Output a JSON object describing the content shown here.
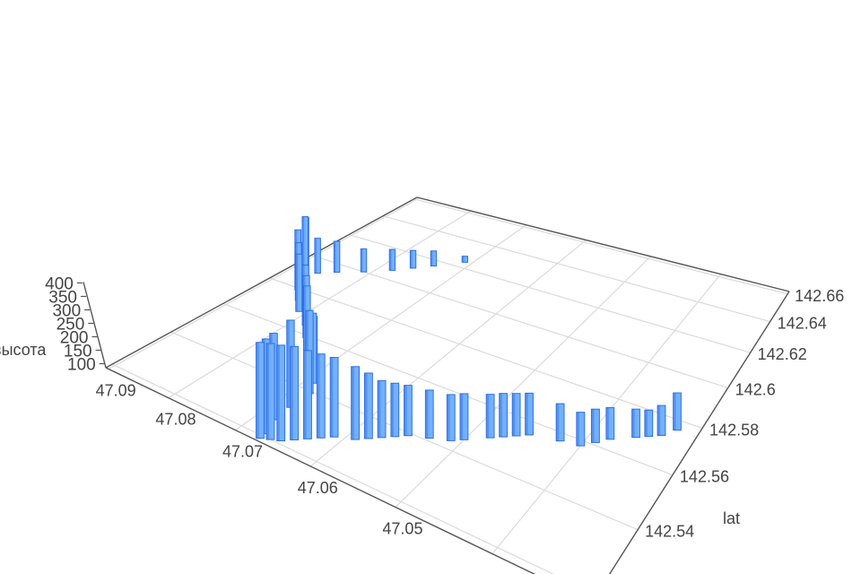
{
  "chart_data": {
    "type": "bar",
    "subtype": "3d-bars",
    "title": "",
    "xlabel": "",
    "ylabel": "lat",
    "zlabel": "высота",
    "x_range": [
      47.031,
      47.0905
    ],
    "y_range": [
      142.518,
      142.662
    ],
    "z_range": [
      85,
      410
    ],
    "x_ticks": [
      "47.09",
      "47.08",
      "47.07",
      "47.06",
      "47.05"
    ],
    "y_ticks": [
      "142.54",
      "142.56",
      "142.58",
      "142.6",
      "142.62",
      "142.64",
      "142.66"
    ],
    "z_ticks": [
      "100",
      "150",
      "200",
      "250",
      "300",
      "350",
      "400"
    ],
    "grid": true,
    "bar_color": "#74b1fb",
    "bar_edge_color": "#2f6fe4",
    "points": {
      "x": [
        47.071,
        47.074,
        47.076,
        47.078,
        47.081,
        47.084,
        47.086,
        47.087,
        47.086,
        47.085,
        47.083,
        47.081,
        47.078,
        47.076,
        47.074,
        47.072,
        47.07,
        47.069,
        47.068,
        47.068,
        47.068,
        47.067,
        47.067,
        47.066,
        47.065,
        47.064,
        47.063,
        47.062,
        47.061,
        47.059,
        47.058,
        47.057,
        47.056,
        47.055,
        47.053,
        47.051,
        47.05,
        47.048,
        47.047,
        47.046,
        47.045,
        47.042,
        47.04,
        47.039,
        47.038,
        47.036,
        47.035,
        47.034,
        47.033
      ],
      "y": [
        142.624,
        142.616,
        142.611,
        142.606,
        142.6,
        142.595,
        142.591,
        142.588,
        142.585,
        142.579,
        142.574,
        142.569,
        142.564,
        142.559,
        142.554,
        142.55,
        142.546,
        142.543,
        142.539,
        142.532,
        142.526,
        142.521,
        142.519,
        142.52,
        142.521,
        142.523,
        142.525,
        142.527,
        142.529,
        142.531,
        142.533,
        142.535,
        142.537,
        142.539,
        142.541,
        142.543,
        142.545,
        142.549,
        142.551,
        142.553,
        142.555,
        142.557,
        142.558,
        142.561,
        142.564,
        142.568,
        142.57,
        142.572,
        142.576
      ],
      "z": [
        113,
        154,
        166,
        180,
        189,
        225,
        243,
        342,
        368,
        346,
        330,
        323,
        328,
        329,
        333,
        257,
        300,
        338,
        380,
        387,
        378,
        399,
        400,
        400,
        398,
        391,
        375,
        361,
        347,
        324,
        300,
        272,
        261,
        251,
        243,
        236,
        236,
        228,
        228,
        225,
        223,
        207,
        194,
        194,
        189,
        178,
        172,
        184,
        209
      ]
    }
  }
}
